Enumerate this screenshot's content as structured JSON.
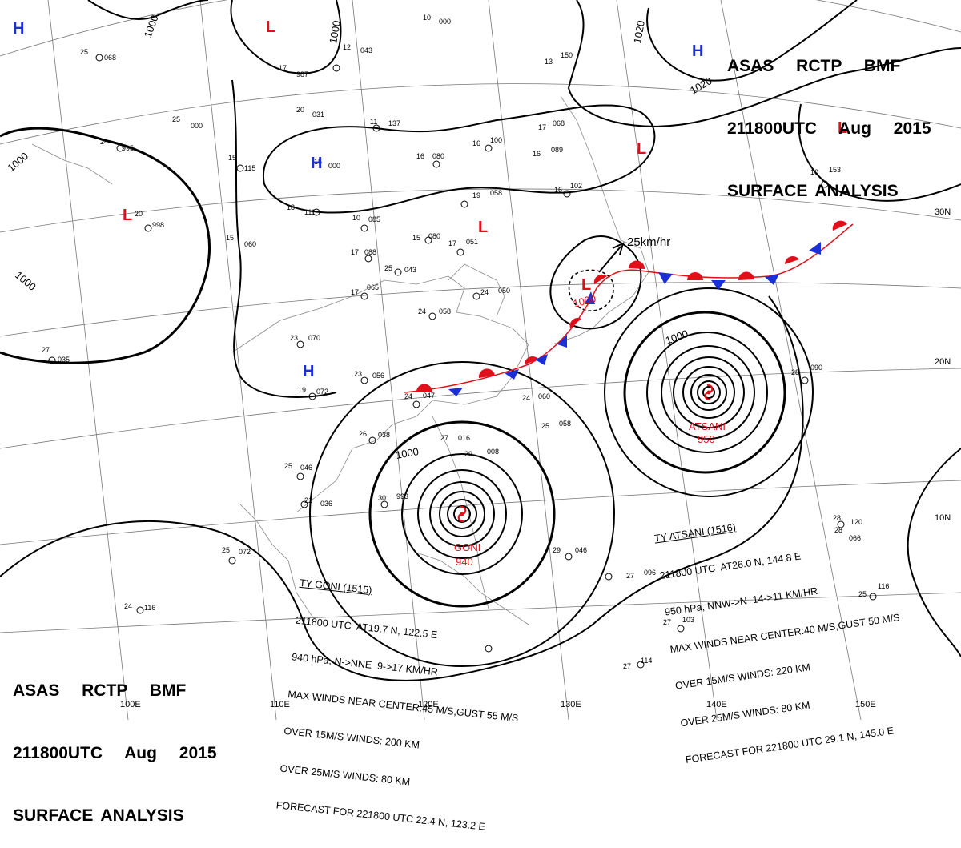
{
  "header": {
    "line1": "ASAS RCTP BMF",
    "line2": "211800UTC Aug 2015",
    "line3": "SURFACE ANALYSIS"
  },
  "colors": {
    "high": "#1a2fd6",
    "low": "#e0101a",
    "front_warm": "#e0101a",
    "front_cold": "#1a2fd6",
    "isobar": "#000000"
  },
  "isobar_labels": [
    "1000",
    "1000",
    "1000",
    "1000",
    "1000",
    "1020",
    "1020",
    "1000",
    "1000",
    "1000"
  ],
  "systems": [
    {
      "type": "H",
      "label": "H"
    },
    {
      "type": "L",
      "label": "L"
    },
    {
      "type": "H",
      "label": "H"
    },
    {
      "type": "L",
      "label": "L"
    },
    {
      "type": "H",
      "label": "H"
    },
    {
      "type": "L",
      "label": "L"
    },
    {
      "type": "L",
      "label": "L"
    },
    {
      "type": "L",
      "label": "L"
    },
    {
      "type": "L",
      "label": "L"
    },
    {
      "type": "H",
      "label": "H"
    }
  ],
  "lat_labels": [
    "30N",
    "20N",
    "10N"
  ],
  "lon_labels": [
    "100E",
    "110E",
    "120E",
    "130E",
    "140E",
    "150E"
  ],
  "storms": {
    "goni": {
      "name": "GONI",
      "pressure": "940"
    },
    "atsani": {
      "name": "ATSANI",
      "pressure": "950"
    },
    "small_low": {
      "pressure": "1000"
    },
    "motion": "25km/hr"
  },
  "goni_note": {
    "title": "TY GONI (1515)",
    "l1": "211800 UTC  AT19.7 N, 122.5 E",
    "l2": "940 hPa, N->NNE  9->17 KM/HR",
    "l3": "MAX WINDS NEAR CENTER:45 M/S,GUST 55 M/S",
    "l4": "OVER 15M/S WINDS: 200 KM",
    "l5": "OVER 25M/S WINDS: 80 KM",
    "l6": "FORECAST FOR 221800 UTC 22.4 N, 123.2 E"
  },
  "atsani_note": {
    "title": "TY ATSANI (1516)",
    "l1": "211800 UTC  AT26.0 N, 144.8 E",
    "l2": "950 hPa, NNW->N  14->11 KM/HR",
    "l3": "MAX WINDS NEAR CENTER:40 M/S,GUST 50 M/S",
    "l4": "OVER 15M/S WINDS: 220 KM",
    "l5": "OVER 25M/S WINDS: 80 KM",
    "l6": "FORECAST FOR 221800 UTC 29.1 N, 145.0 E"
  },
  "station_plots": [
    {
      "t": "25",
      "p": "068"
    },
    {
      "t": "17",
      "p": "987"
    },
    {
      "t": "12",
      "p": "043"
    },
    {
      "t": "10",
      "p": "000"
    },
    {
      "t": "25",
      "p": "000"
    },
    {
      "t": "20",
      "p": "031"
    },
    {
      "t": "11",
      "p": "137"
    },
    {
      "t": "24",
      "p": "995"
    },
    {
      "t": "15",
      "p": "115"
    },
    {
      "t": "15",
      "p": "000"
    },
    {
      "t": "16",
      "p": "080"
    },
    {
      "t": "16",
      "p": "100"
    },
    {
      "t": "16",
      "p": "089"
    },
    {
      "t": "13",
      "p": "150"
    },
    {
      "t": "17",
      "p": "068"
    },
    {
      "t": "16",
      "p": "102"
    },
    {
      "t": "19",
      "p": "058"
    },
    {
      "t": "20",
      "p": "998"
    },
    {
      "t": "18",
      "p": "111"
    },
    {
      "t": "10",
      "p": "085"
    },
    {
      "t": "15",
      "p": "080"
    },
    {
      "t": "17",
      "p": "051"
    },
    {
      "t": "15",
      "p": "060"
    },
    {
      "t": "17",
      "p": "088"
    },
    {
      "t": "25",
      "p": "043"
    },
    {
      "t": "24",
      "p": "050"
    },
    {
      "t": "17",
      "p": "065"
    },
    {
      "t": "24",
      "p": "058"
    },
    {
      "t": "23",
      "p": "070"
    },
    {
      "t": "27",
      "p": "035"
    },
    {
      "t": "23",
      "p": "056"
    },
    {
      "t": "19",
      "p": "072"
    },
    {
      "t": "24",
      "p": "047"
    },
    {
      "t": "26",
      "p": "038"
    },
    {
      "t": "24",
      "p": "060"
    },
    {
      "t": "25",
      "p": "058"
    },
    {
      "t": "27",
      "p": "016"
    },
    {
      "t": "29",
      "p": "008"
    },
    {
      "t": "25",
      "p": "046"
    },
    {
      "t": "21",
      "p": "036"
    },
    {
      "t": "30",
      "p": "993"
    },
    {
      "t": "25",
      "p": "072"
    },
    {
      "t": "29",
      "p": "046"
    },
    {
      "t": "28",
      "p": "090"
    },
    {
      "t": "28",
      "p": "120"
    },
    {
      "t": "25",
      "p": "116"
    },
    {
      "t": "24",
      "p": "116"
    },
    {
      "t": "27",
      "p": "103"
    },
    {
      "t": "27",
      "p": "114"
    },
    {
      "t": "27",
      "p": "096"
    },
    {
      "t": "28",
      "p": "066"
    },
    {
      "t": "10",
      "p": "153"
    }
  ]
}
